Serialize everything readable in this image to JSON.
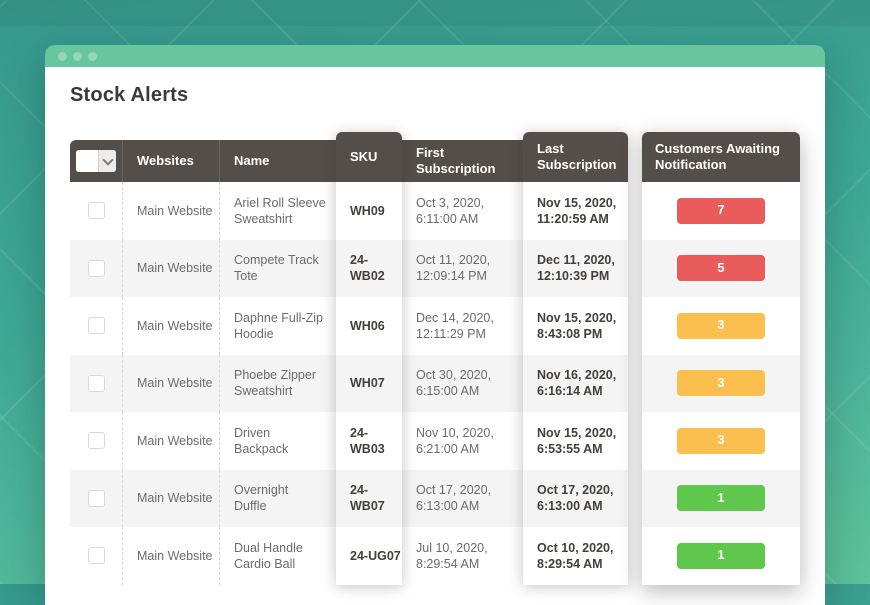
{
  "window": {
    "title": "Stock Alerts"
  },
  "table": {
    "header": {
      "websites": "Websites",
      "name": "Name",
      "sku": "SKU",
      "first_subscription": "First Subscription",
      "last_subscription": "Last Subscription",
      "customers": "Customers Awaiting Notification"
    },
    "rows": [
      {
        "website": "Main Website",
        "name": "Ariel Roll Sleeve\nSweatshirt",
        "sku": "WH09",
        "first_subscription": "Oct 3, 2020,\n6:11:00 AM",
        "last_subscription": "Nov 15, 2020,\n11:20:59 AM",
        "customers_awaiting": "7",
        "badge": "red"
      },
      {
        "website": "Main Website",
        "name": "Compete Track\nTote",
        "sku": "24-WB02",
        "first_subscription": "Oct 11, 2020,\n12:09:14 PM",
        "last_subscription": "Dec 11, 2020,\n12:10:39 PM",
        "customers_awaiting": "5",
        "badge": "red"
      },
      {
        "website": "Main Website",
        "name": "Daphne Full-Zip\nHoodie",
        "sku": "WH06",
        "first_subscription": "Dec 14, 2020,\n12:11:29 PM",
        "last_subscription": "Nov 15, 2020,\n8:43:08 PM",
        "customers_awaiting": "3",
        "badge": "yellow"
      },
      {
        "website": "Main Website",
        "name": "Phoebe Zipper\nSweatshirt",
        "sku": "WH07",
        "first_subscription": "Oct 30, 2020,\n6:15:00 AM",
        "last_subscription": "Nov 16, 2020,\n6:16:14 AM",
        "customers_awaiting": "3",
        "badge": "yellow"
      },
      {
        "website": "Main Website",
        "name": "Driven\nBackpack",
        "sku": "24-WB03",
        "first_subscription": "Nov 10, 2020,\n6:21:00 AM",
        "last_subscription": "Nov 15, 2020,\n6:53:55 AM",
        "customers_awaiting": "3",
        "badge": "yellow"
      },
      {
        "website": "Main Website",
        "name": "Overnight\nDuffle",
        "sku": "24-WB07",
        "first_subscription": "Oct 17, 2020,\n6:13:00 AM",
        "last_subscription": "Oct 17, 2020,\n6:13:00 AM",
        "customers_awaiting": "1",
        "badge": "green"
      },
      {
        "website": "Main Website",
        "name": "Dual Handle\nCardio Ball",
        "sku": "24-UG07",
        "first_subscription": "Jul 10, 2020,\n8:29:54 AM",
        "last_subscription": "Oct 10, 2020,\n8:29:54 AM",
        "customers_awaiting": "1",
        "badge": "green"
      }
    ]
  },
  "colors": {
    "badge_red": "#ea5c5c",
    "badge_yellow": "#fbbf4f",
    "badge_green": "#5fc84c",
    "header_bg": "#544e4a",
    "titlebar_green": "#68c69e",
    "background_teal": "#3aa093",
    "row_alt": "#f4f4f4"
  }
}
